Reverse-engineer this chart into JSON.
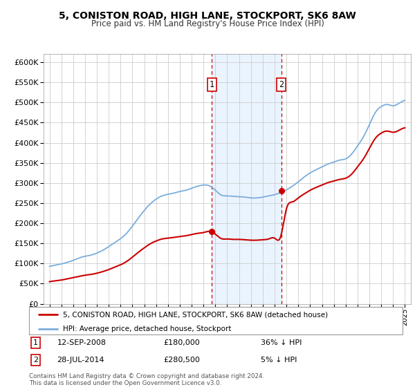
{
  "title1": "5, CONISTON ROAD, HIGH LANE, STOCKPORT, SK6 8AW",
  "title2": "Price paid vs. HM Land Registry's House Price Index (HPI)",
  "ylim": [
    0,
    620000
  ],
  "yticks": [
    0,
    50000,
    100000,
    150000,
    200000,
    250000,
    300000,
    350000,
    400000,
    450000,
    500000,
    550000,
    600000
  ],
  "xlim_start": 1994.5,
  "xlim_end": 2025.5,
  "sale1_x": 2008.71,
  "sale1_y": 180000,
  "sale2_x": 2014.57,
  "sale2_y": 280500,
  "sale1_label": "1",
  "sale2_label": "2",
  "sale1_date": "12-SEP-2008",
  "sale1_price": "£180,000",
  "sale1_hpi": "36% ↓ HPI",
  "sale2_date": "28-JUL-2014",
  "sale2_price": "£280,500",
  "sale2_hpi": "5% ↓ HPI",
  "red_color": "#cc0000",
  "blue_color": "#7aaddb",
  "shade_color": "#ddeeff",
  "grid_color": "#cccccc",
  "legend_label_red": "5, CONISTON ROAD, HIGH LANE, STOCKPORT, SK6 8AW (detached house)",
  "legend_label_blue": "HPI: Average price, detached house, Stockport",
  "footer": "Contains HM Land Registry data © Crown copyright and database right 2024.\nThis data is licensed under the Open Government Licence v3.0.",
  "hpi_years": [
    1995.0,
    1995.5,
    1996.0,
    1996.5,
    1997.0,
    1997.5,
    1998.0,
    1998.5,
    1999.0,
    1999.5,
    2000.0,
    2000.5,
    2001.0,
    2001.5,
    2002.0,
    2002.5,
    2003.0,
    2003.5,
    2004.0,
    2004.5,
    2005.0,
    2005.5,
    2006.0,
    2006.5,
    2007.0,
    2007.5,
    2008.0,
    2008.5,
    2009.0,
    2009.5,
    2010.0,
    2010.5,
    2011.0,
    2011.5,
    2012.0,
    2012.5,
    2013.0,
    2013.5,
    2014.0,
    2014.5,
    2015.0,
    2015.5,
    2016.0,
    2016.5,
    2017.0,
    2017.5,
    2018.0,
    2018.5,
    2019.0,
    2019.5,
    2020.0,
    2020.5,
    2021.0,
    2021.5,
    2022.0,
    2022.5,
    2023.0,
    2023.5,
    2024.0,
    2024.5,
    2025.0
  ],
  "hpi_vals": [
    93000,
    96000,
    99000,
    103000,
    108000,
    114000,
    118000,
    121000,
    126000,
    133000,
    142000,
    152000,
    162000,
    175000,
    193000,
    213000,
    232000,
    248000,
    260000,
    268000,
    272000,
    275000,
    279000,
    282000,
    287000,
    292000,
    295000,
    293000,
    282000,
    270000,
    268000,
    267000,
    266000,
    265000,
    263000,
    263000,
    265000,
    268000,
    271000,
    276000,
    283000,
    292000,
    303000,
    315000,
    325000,
    333000,
    340000,
    347000,
    352000,
    357000,
    360000,
    372000,
    392000,
    415000,
    445000,
    475000,
    490000,
    495000,
    492000,
    498000,
    505000
  ],
  "red_years": [
    1995.0,
    1995.5,
    1996.0,
    1996.5,
    1997.0,
    1997.5,
    1998.0,
    1998.5,
    1999.0,
    1999.5,
    2000.0,
    2000.5,
    2001.0,
    2001.5,
    2002.0,
    2002.5,
    2003.0,
    2003.5,
    2004.0,
    2004.5,
    2005.0,
    2005.5,
    2006.0,
    2006.5,
    2007.0,
    2007.5,
    2008.0,
    2008.5,
    2009.0,
    2009.5,
    2010.0,
    2010.5,
    2011.0,
    2011.5,
    2012.0,
    2012.5,
    2013.0,
    2013.5,
    2014.0,
    2014.5,
    2015.0,
    2015.5,
    2016.0,
    2016.5,
    2017.0,
    2017.5,
    2018.0,
    2018.5,
    2019.0,
    2019.5,
    2020.0,
    2020.5,
    2021.0,
    2021.5,
    2022.0,
    2022.5,
    2023.0,
    2023.5,
    2024.0,
    2024.5,
    2025.0
  ],
  "red_vals": [
    55000,
    57000,
    59000,
    62000,
    65000,
    68000,
    71000,
    73000,
    76000,
    80000,
    85000,
    91000,
    97000,
    105000,
    116000,
    128000,
    139000,
    149000,
    156000,
    161000,
    163000,
    165000,
    167000,
    169000,
    172000,
    175000,
    177000,
    180000,
    173000,
    162000,
    161000,
    160000,
    160000,
    159000,
    158000,
    158000,
    159000,
    161000,
    163000,
    166000,
    236000,
    253000,
    263000,
    273000,
    282000,
    289000,
    295000,
    301000,
    305000,
    309000,
    312000,
    322000,
    340000,
    360000,
    386000,
    411000,
    424000,
    429000,
    426000,
    431000,
    437000
  ]
}
